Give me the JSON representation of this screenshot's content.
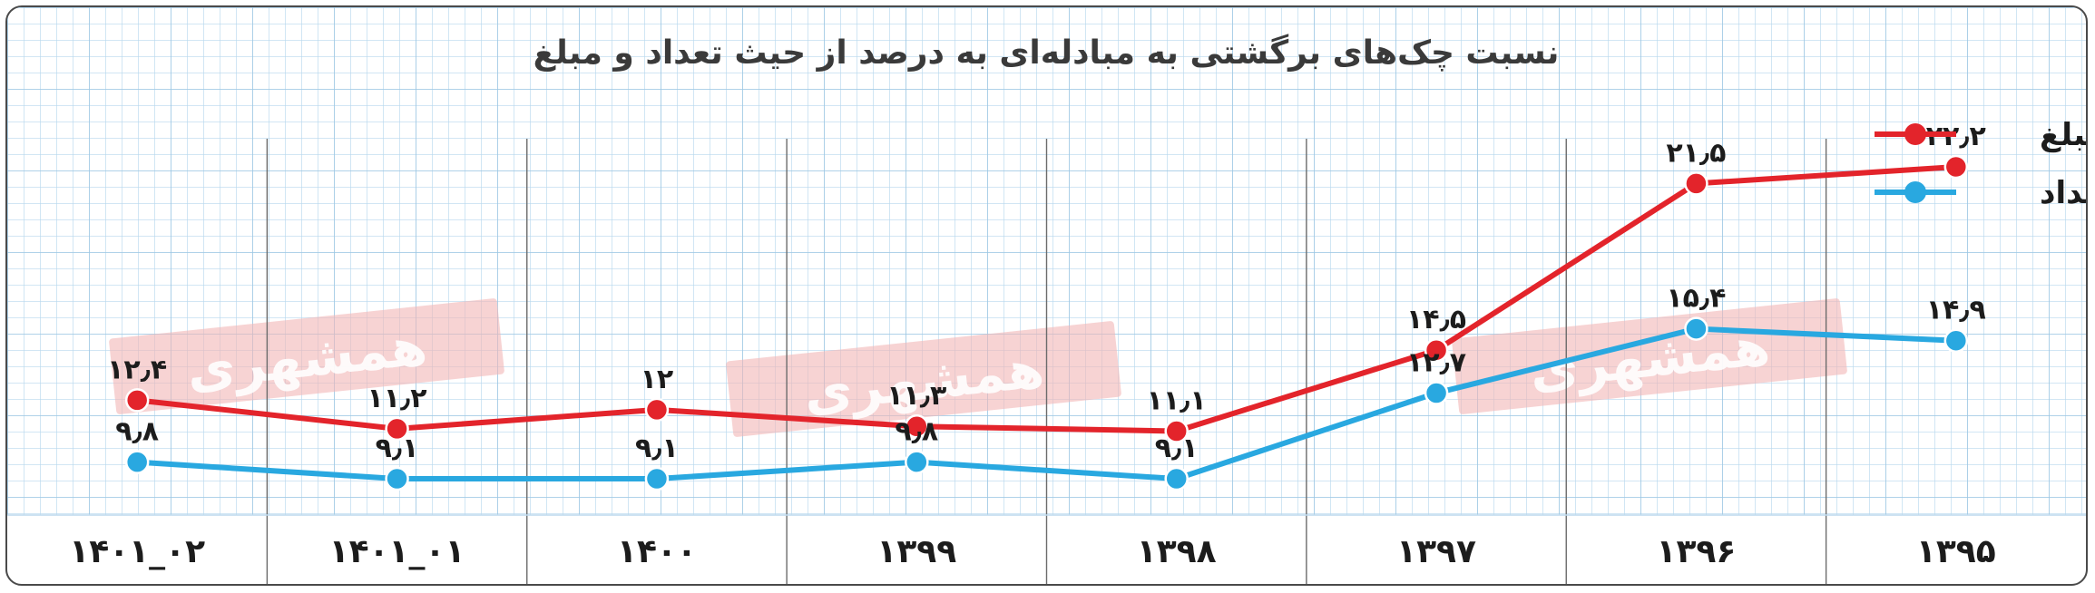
{
  "chart_data": {
    "type": "line",
    "title": "نسبت چک‌های برگشتی به مبادله‌ای به درصد از حیث تعداد و مبلغ",
    "categories": [
      "۱۳۹۵",
      "۱۳۹۶",
      "۱۳۹۷",
      "۱۳۹۸",
      "۱۳۹۹",
      "۱۴۰۰",
      "۱۴۰۱_۰۱",
      "۱۴۰۱_۰۲"
    ],
    "series": [
      {
        "name": "مبلغ",
        "color": "#e3242b",
        "values": [
          22.2,
          21.5,
          14.5,
          11.1,
          11.3,
          12,
          11.2,
          12.4
        ],
        "labels": [
          "۲۲٫۲",
          "۲۱٫۵",
          "۱۴٫۵",
          "۱۱٫۱",
          "۱۱٫۳",
          "۱۲",
          "۱۱٫۲",
          "۱۲٫۴"
        ]
      },
      {
        "name": "تعداد",
        "color": "#29a8e0",
        "values": [
          14.9,
          15.4,
          12.7,
          9.1,
          9.8,
          9.1,
          9.1,
          9.8
        ],
        "labels": [
          "۱۴٫۹",
          "۱۵٫۴",
          "۱۲٫۷",
          "۹٫۱",
          "۹٫۸",
          "۹٫۱",
          "۹٫۱",
          "۹٫۸"
        ]
      }
    ],
    "legend_position": "top-right",
    "grid": true,
    "watermark": "همشهری"
  }
}
